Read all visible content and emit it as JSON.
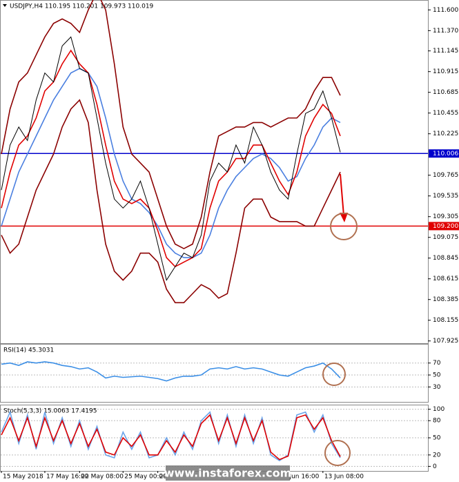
{
  "chart_data": [
    {
      "type": "line",
      "title": "USDJPY,H4  110.195 110.201 109.973 110.019",
      "ylim": [
        107.9,
        111.71
      ],
      "yticks": [
        {
          "value": 111.6,
          "label": "111.600"
        },
        {
          "value": 111.37,
          "label": "111.370"
        },
        {
          "value": 111.145,
          "label": "111.145"
        },
        {
          "value": 110.915,
          "label": "110.915"
        },
        {
          "value": 110.685,
          "label": "110.685"
        },
        {
          "value": 110.455,
          "label": "110.455"
        },
        {
          "value": 110.225,
          "label": "110.225"
        },
        {
          "value": 109.765,
          "label": "109.765"
        },
        {
          "value": 109.535,
          "label": "109.535"
        },
        {
          "value": 109.305,
          "label": "109.305"
        },
        {
          "value": 109.075,
          "label": "109.075"
        },
        {
          "value": 108.845,
          "label": "108.845"
        },
        {
          "value": 108.615,
          "label": "108.615"
        },
        {
          "value": 108.385,
          "label": "108.385"
        },
        {
          "value": 108.155,
          "label": "108.155"
        },
        {
          "value": 107.925,
          "label": "107.925"
        }
      ],
      "levels": [
        {
          "value": 110.006,
          "label": "110.006",
          "color": "#0000cc"
        },
        {
          "value": 109.2,
          "label": "109.200",
          "color": "#e00000"
        }
      ],
      "series": [
        {
          "color": "#8b0000",
          "values": [
            110.0,
            110.5,
            110.8,
            110.9,
            111.1,
            111.3,
            111.45,
            111.5,
            111.45,
            111.35,
            111.6,
            111.8,
            111.6,
            111.0,
            110.3,
            110.0,
            109.9,
            109.8,
            109.5,
            109.2,
            109.0,
            108.95,
            109.0,
            109.3,
            109.8,
            110.2,
            110.25,
            110.3,
            110.3,
            110.35,
            110.35,
            110.3,
            110.35,
            110.4,
            110.4,
            110.5,
            110.7,
            110.85,
            110.85,
            110.65
          ]
        },
        {
          "color": "#8b0000",
          "values": [
            109.1,
            108.9,
            109.0,
            109.3,
            109.6,
            109.8,
            110.0,
            110.3,
            110.5,
            110.6,
            110.35,
            109.6,
            109.0,
            108.7,
            108.6,
            108.7,
            108.9,
            108.9,
            108.8,
            108.5,
            108.35,
            108.35,
            108.45,
            108.55,
            108.5,
            108.4,
            108.45,
            108.9,
            109.4,
            109.5,
            109.5,
            109.3,
            109.25,
            109.25,
            109.25,
            109.2,
            109.2,
            109.4,
            109.6,
            109.8
          ]
        },
        {
          "color": "#4a7fe0",
          "values": [
            109.2,
            109.5,
            109.8,
            110.0,
            110.2,
            110.4,
            110.6,
            110.75,
            110.9,
            110.95,
            110.9,
            110.75,
            110.4,
            110.0,
            109.7,
            109.5,
            109.45,
            109.35,
            109.2,
            109.0,
            108.9,
            108.85,
            108.85,
            108.9,
            109.1,
            109.4,
            109.6,
            109.75,
            109.85,
            109.95,
            110.0,
            109.95,
            109.85,
            109.7,
            109.75,
            109.95,
            110.1,
            110.3,
            110.4,
            110.35
          ]
        },
        {
          "color": "#e00000",
          "values": [
            109.4,
            109.8,
            110.1,
            110.2,
            110.4,
            110.7,
            110.8,
            111.0,
            111.15,
            111.0,
            110.9,
            110.55,
            110.1,
            109.7,
            109.5,
            109.45,
            109.5,
            109.4,
            109.15,
            108.85,
            108.75,
            108.8,
            108.85,
            108.95,
            109.4,
            109.7,
            109.8,
            109.95,
            109.95,
            110.1,
            110.1,
            109.9,
            109.7,
            109.55,
            109.8,
            110.2,
            110.4,
            110.55,
            110.45,
            110.2
          ]
        },
        {
          "color": "#000000",
          "values": [
            109.6,
            110.1,
            110.3,
            110.15,
            110.6,
            110.9,
            110.8,
            111.2,
            111.3,
            110.95,
            110.9,
            110.4,
            109.9,
            109.5,
            109.4,
            109.5,
            109.7,
            109.4,
            109.0,
            108.6,
            108.75,
            108.9,
            108.85,
            109.1,
            109.7,
            109.9,
            109.8,
            110.1,
            109.9,
            110.3,
            110.1,
            109.8,
            109.6,
            109.5,
            110.0,
            110.45,
            110.5,
            110.7,
            110.4,
            110.02
          ]
        }
      ]
    },
    {
      "type": "line",
      "title": "RSI(14) 45.3031",
      "ylim": [
        5,
        102
      ],
      "yticks": [
        70,
        50,
        30
      ],
      "series": [
        {
          "color": "#3a8ee6",
          "values": [
            68,
            70,
            66,
            72,
            70,
            72,
            70,
            66,
            64,
            60,
            62,
            55,
            45,
            48,
            46,
            47,
            48,
            46,
            44,
            40,
            45,
            48,
            48,
            50,
            60,
            62,
            60,
            64,
            60,
            62,
            60,
            55,
            50,
            48,
            55,
            62,
            65,
            70,
            60,
            45
          ]
        }
      ]
    },
    {
      "type": "line",
      "title": "Stoch(5,3,3) 15.0063 17.4195",
      "ylim": [
        -8,
        108
      ],
      "yticks": [
        100,
        80,
        50,
        20,
        0
      ],
      "categories": [
        "15 May 2018",
        null,
        null,
        null,
        null,
        "17 May 16:00",
        null,
        null,
        null,
        "22 May 08:00",
        null,
        null,
        null,
        null,
        "25 May 00:00",
        null,
        null,
        null,
        "29",
        null,
        null,
        null,
        null,
        null,
        null,
        null,
        null,
        null,
        null,
        null,
        null,
        null,
        null,
        "Jun 16:00",
        null,
        null,
        null,
        "13 Jun 08:00",
        null,
        null
      ],
      "series": [
        {
          "color": "#6aa4ea",
          "values": [
            60,
            95,
            40,
            90,
            30,
            95,
            40,
            85,
            35,
            80,
            30,
            70,
            20,
            15,
            60,
            30,
            60,
            15,
            20,
            50,
            20,
            60,
            30,
            80,
            95,
            40,
            90,
            35,
            90,
            40,
            85,
            20,
            10,
            20,
            90,
            95,
            60,
            90,
            40,
            15
          ]
        },
        {
          "color": "#e00000",
          "values": [
            55,
            85,
            45,
            85,
            35,
            85,
            45,
            80,
            40,
            75,
            35,
            65,
            25,
            20,
            50,
            35,
            55,
            20,
            20,
            45,
            25,
            55,
            35,
            75,
            90,
            45,
            85,
            40,
            85,
            45,
            80,
            25,
            12,
            18,
            85,
            90,
            65,
            85,
            45,
            17
          ]
        }
      ]
    }
  ],
  "watermark": "www.instaforex.com"
}
